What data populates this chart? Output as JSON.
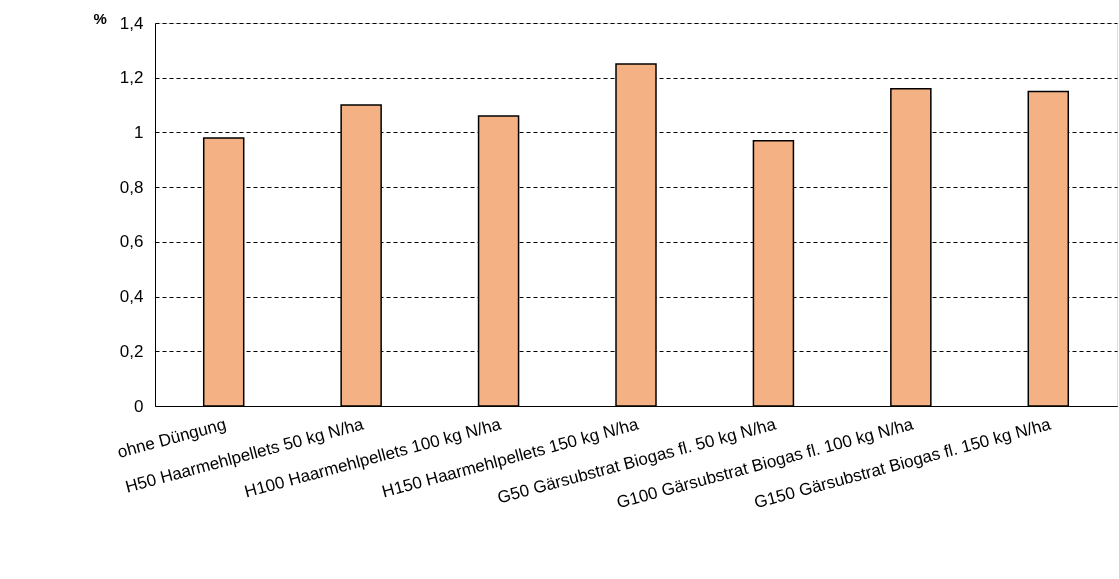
{
  "chart_data": {
    "type": "bar",
    "ylabel": "%",
    "categories": [
      "ohne Düngung",
      "H50 Haarmehlpellets 50 kg N/ha",
      "H100 Haarmehlpellets 100 kg N/ha",
      "H150 Haarmehlpellets 150 kg N/ha",
      "G50 Gärsubstrat Biogas fl. 50 kg N/ha",
      "G100 Gärsubstrat Biogas fl. 100 kg N/ha",
      "G150 Gärsubstrat Biogas fl. 150 kg N/ha"
    ],
    "values": [
      0.98,
      1.1,
      1.06,
      1.25,
      0.97,
      1.16,
      1.15
    ],
    "color": "#f4b183",
    "ylim": [
      0,
      1.4
    ],
    "yticks": [
      {
        "value": 0,
        "label": "0"
      },
      {
        "value": 0.2,
        "label": "0,2"
      },
      {
        "value": 0.4,
        "label": "0,4"
      },
      {
        "value": 0.6,
        "label": "0,6"
      },
      {
        "value": 0.8,
        "label": "0,8"
      },
      {
        "value": 1,
        "label": "1"
      },
      {
        "value": 1.2,
        "label": "1,2"
      },
      {
        "value": 1.4,
        "label": "1,4"
      }
    ],
    "grid": "y"
  }
}
